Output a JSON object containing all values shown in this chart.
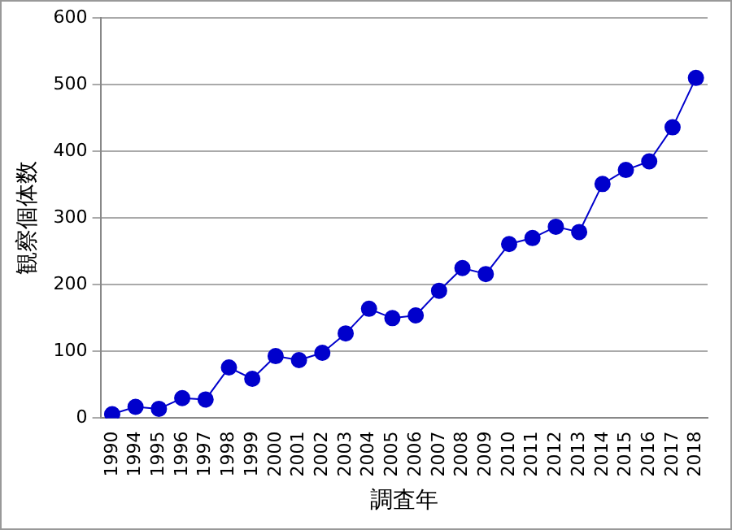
{
  "chart_data": {
    "type": "line",
    "xlabel": "調査年",
    "ylabel": "観察個体数",
    "categories": [
      "1990",
      "1994",
      "1995",
      "1996",
      "1997",
      "1998",
      "1999",
      "2000",
      "2001",
      "2002",
      "2003",
      "2004",
      "2005",
      "2006",
      "2007",
      "2008",
      "2009",
      "2010",
      "2011",
      "2012",
      "2013",
      "2014",
      "2015",
      "2016",
      "2017",
      "2018"
    ],
    "series": [
      {
        "color": "#0000cc",
        "values": [
          6,
          17,
          14,
          30,
          28,
          76,
          59,
          93,
          87,
          98,
          127,
          164,
          150,
          154,
          191,
          225,
          216,
          261,
          270,
          287,
          279,
          351,
          372,
          385,
          436,
          510
        ]
      }
    ],
    "ylim": [
      0,
      600
    ],
    "yticks": [
      0,
      100,
      200,
      300,
      400,
      500,
      600
    ],
    "grid": "y",
    "legend": false,
    "marker": "circle",
    "line_style": "solid"
  }
}
